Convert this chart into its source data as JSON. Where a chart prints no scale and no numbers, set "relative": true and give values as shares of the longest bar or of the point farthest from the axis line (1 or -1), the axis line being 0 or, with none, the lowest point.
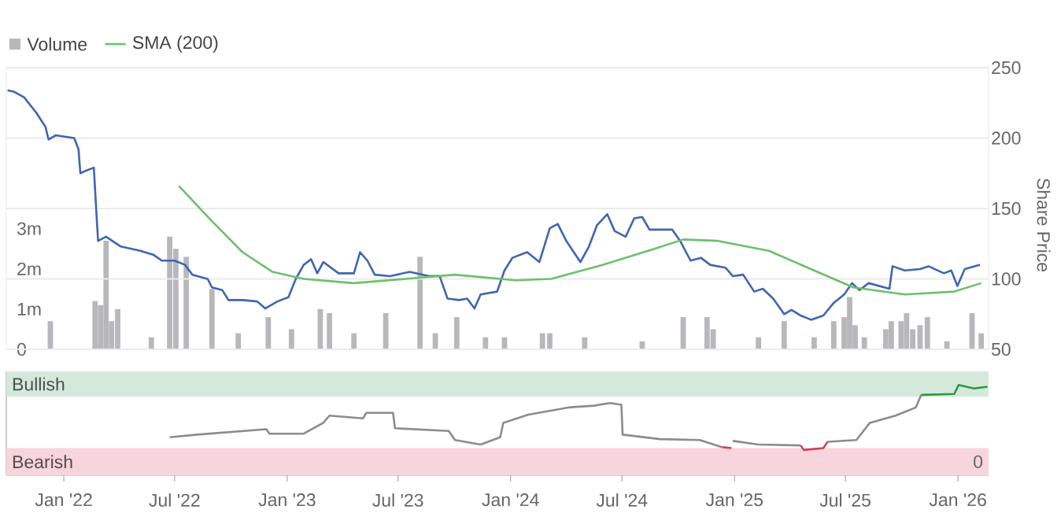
{
  "chart_data": [
    {
      "type": "line",
      "legend": "top left",
      "grid": "y",
      "tick_labels": "y",
      "y2label": "Share Price",
      "xlim": [
        "2021-09-29",
        "2026-02-20"
      ],
      "ylim": [
        0,
        7000000
      ],
      "yticks": [
        0,
        {
          "value": 1000000,
          "label": "1m"
        },
        {
          "value": 2000000,
          "label": "2m"
        },
        {
          "value": 3000000,
          "label": "3m"
        }
      ],
      "y2lim": [
        50,
        250
      ],
      "y2ticks": [
        50,
        100,
        150,
        200,
        250
      ],
      "series": [
        {
          "name": "Volume",
          "type": "bar",
          "color": "#b8b8bc",
          "x": [
            "2021-12-10",
            "2022-02-21",
            "2022-03-02",
            "2022-03-11",
            "2022-03-20",
            "2022-03-30",
            "2022-05-24",
            "2022-06-23",
            "2022-07-03",
            "2022-07-20",
            "2022-08-31",
            "2022-10-13",
            "2022-12-01",
            "2023-01-08",
            "2023-02-24",
            "2023-03-11",
            "2023-04-20",
            "2023-06-11",
            "2023-08-06",
            "2023-08-31",
            "2023-10-05",
            "2023-11-21",
            "2023-12-22",
            "2024-02-22",
            "2024-03-05",
            "2024-05-01",
            "2024-08-03",
            "2024-10-09",
            "2024-11-17",
            "2024-11-27",
            "2025-02-09",
            "2025-03-23",
            "2025-05-11",
            "2025-06-12",
            "2025-06-29",
            "2025-07-08",
            "2025-07-17",
            "2025-08-01",
            "2025-09-05",
            "2025-09-14",
            "2025-09-30",
            "2025-10-09",
            "2025-10-19",
            "2025-10-31",
            "2025-11-12",
            "2025-12-14",
            "2026-01-24",
            "2026-02-08"
          ],
          "values": [
            700000,
            1200000,
            1100000,
            2700000,
            700000,
            1000000,
            300000,
            2800000,
            2500000,
            2300000,
            1500000,
            400000,
            800000,
            500000,
            1000000,
            900000,
            400000,
            900000,
            2300000,
            400000,
            800000,
            300000,
            300000,
            400000,
            400000,
            300000,
            200000,
            800000,
            800000,
            500000,
            300000,
            700000,
            300000,
            700000,
            800000,
            1300000,
            600000,
            300000,
            500000,
            700000,
            700000,
            900000,
            500000,
            600000,
            800000,
            200000,
            900000,
            400000
          ]
        },
        {
          "axis": "y2",
          "color": "#3f66b0",
          "x": [
            "2021-10-01",
            "2021-10-11",
            "2021-10-28",
            "2021-11-17",
            "2021-12-02",
            "2021-12-07",
            "2021-12-19",
            "2022-01-18",
            "2022-01-25",
            "2022-01-28",
            "2022-02-07",
            "2022-02-19",
            "2022-02-24",
            "2022-02-26",
            "2022-03-11",
            "2022-04-04",
            "2022-05-06",
            "2022-05-28",
            "2022-06-10",
            "2022-07-01",
            "2022-07-18",
            "2022-07-30",
            "2022-08-24",
            "2022-08-31",
            "2022-09-17",
            "2022-09-27",
            "2022-10-20",
            "2022-11-13",
            "2022-11-26",
            "2022-12-16",
            "2023-01-03",
            "2023-01-15",
            "2023-01-28",
            "2023-02-09",
            "2023-02-19",
            "2023-03-01",
            "2023-03-26",
            "2023-04-20",
            "2023-04-30",
            "2023-05-12",
            "2023-05-24",
            "2023-06-18",
            "2023-07-20",
            "2023-08-21",
            "2023-09-07",
            "2023-09-20",
            "2023-10-09",
            "2023-10-22",
            "2023-11-03",
            "2023-11-13",
            "2023-12-10",
            "2023-12-22",
            "2024-01-04",
            "2024-01-28",
            "2024-02-17",
            "2024-03-05",
            "2024-03-18",
            "2024-04-01",
            "2024-04-24",
            "2024-05-08",
            "2024-05-21",
            "2024-06-07",
            "2024-06-19",
            "2024-07-07",
            "2024-07-21",
            "2024-08-03",
            "2024-08-15",
            "2024-09-21",
            "2024-10-04",
            "2024-10-21",
            "2024-11-07",
            "2024-11-22",
            "2024-12-17",
            "2024-12-29",
            "2025-01-15",
            "2025-02-02",
            "2025-02-16",
            "2025-03-05",
            "2025-03-23",
            "2025-04-04",
            "2025-04-19",
            "2025-05-06",
            "2025-05-26",
            "2025-06-12",
            "2025-06-29",
            "2025-07-12",
            "2025-07-24",
            "2025-08-08",
            "2025-09-11",
            "2025-09-16",
            "2025-10-06",
            "2025-10-31",
            "2025-11-14",
            "2025-12-09",
            "2025-12-21",
            "2025-12-31",
            "2026-01-12",
            "2026-02-06"
          ],
          "values": [
            234,
            233,
            229,
            218,
            208,
            199,
            202,
            200,
            192,
            175,
            177,
            179,
            141,
            127,
            130,
            123,
            120,
            117,
            113,
            113,
            110,
            103,
            100,
            94,
            92,
            85,
            85,
            84,
            79,
            84,
            87,
            100,
            110,
            114,
            104,
            112,
            104,
            104,
            119,
            113,
            103,
            102,
            105,
            102,
            102,
            86,
            85,
            86,
            79,
            89,
            91,
            106,
            115,
            119,
            112,
            136,
            139,
            127,
            112,
            123,
            138,
            146,
            134,
            130,
            143,
            144,
            135,
            135,
            127,
            113,
            115,
            110,
            108,
            102,
            103,
            91,
            93,
            86,
            75,
            78,
            74,
            71,
            74,
            83,
            89,
            97,
            92,
            97,
            93,
            109,
            106,
            107,
            109,
            104,
            106,
            95,
            107,
            110
          ]
        },
        {
          "name": "SMA (200)",
          "axis": "y2",
          "color": "#6cc06c",
          "x": [
            "2022-07-08",
            "2022-08-31",
            "2022-10-20",
            "2022-12-08",
            "2023-01-28",
            "2023-04-20",
            "2023-07-13",
            "2023-10-02",
            "2024-01-09",
            "2024-03-07",
            "2024-05-31",
            "2024-08-20",
            "2024-10-09",
            "2024-12-05",
            "2025-02-26",
            "2025-05-11",
            "2025-07-14",
            "2025-10-06",
            "2025-12-26",
            "2026-02-08"
          ],
          "values": [
            166,
            141,
            119,
            105,
            100,
            97,
            100,
            103,
            99,
            100,
            110,
            121,
            128,
            127,
            120,
            106,
            94,
            89,
            91,
            97
          ]
        }
      ]
    },
    {
      "type": "line",
      "relative": true,
      "tick_labels": "x",
      "xlim": [
        "2021-09-29",
        "2026-02-20"
      ],
      "xticks": [
        {
          "value": "2022-01-01",
          "label": "Jan '22"
        },
        {
          "value": "2022-07-01",
          "label": "Jul '22"
        },
        {
          "value": "2023-01-01",
          "label": "Jan '23"
        },
        {
          "value": "2023-07-01",
          "label": "Jul '23"
        },
        {
          "value": "2024-01-01",
          "label": "Jan '24"
        },
        {
          "value": "2024-07-01",
          "label": "Jul '24"
        },
        {
          "value": "2025-01-01",
          "label": "Jan '25"
        },
        {
          "value": "2025-07-01",
          "label": "Jul '25"
        },
        {
          "value": "2026-01-01",
          "label": "Jan '26"
        }
      ],
      "bands": [
        {
          "axis": "y",
          "from": 0.87,
          "to": 1.15,
          "label": "Bullish",
          "color": "#d4e9dc"
        },
        {
          "axis": "y",
          "from": 0,
          "to": 0.3,
          "label": "Bearish",
          "color": "#f6d5dc"
        }
      ],
      "annotations": [
        "0"
      ],
      "series": [
        {
          "color": "#8c8c8c",
          "x": [
            "2022-06-23",
            "2022-08-07",
            "2022-11-28",
            "2022-12-03",
            "2023-01-28",
            "2023-03-01",
            "2023-03-11",
            "2023-05-05",
            "2023-05-10",
            "2023-06-23",
            "2023-06-26",
            "2023-09-22",
            "2023-10-02",
            "2023-11-13",
            "2023-12-15",
            "2023-12-20",
            "2024-01-30",
            "2024-04-04",
            "2024-05-16",
            "2024-06-12",
            "2024-06-30",
            "2024-07-02",
            "2024-09-01",
            "2024-11-05",
            "2024-12-12",
            "2024-12-20",
            "2024-12-29",
            "2025-02-09",
            "2025-04-19",
            "2025-04-22",
            "2025-06-02",
            "2025-07-19",
            "2025-08-10",
            "2025-09-21",
            "2025-10-24",
            "2025-11-02"
          ],
          "values": [
            0.42,
            0.45,
            0.51,
            0.46,
            0.46,
            0.58,
            0.66,
            0.63,
            0.69,
            0.69,
            0.52,
            0.49,
            0.39,
            0.34,
            0.42,
            0.58,
            0.67,
            0.75,
            0.77,
            0.8,
            0.78,
            0.45,
            0.4,
            0.39,
            0.31,
            null,
            0.38,
            0.34,
            0.33,
            null,
            0.37,
            0.39,
            0.58,
            0.66,
            0.75,
            0.89
          ]
        },
        {
          "color": "#d0405a",
          "x": [
            "2024-12-12",
            "2024-12-27",
            "2025-01-10",
            "2025-04-19",
            "2025-04-24",
            "2025-05-26",
            "2025-06-02"
          ],
          "values": [
            0.31,
            0.3,
            null,
            0.33,
            0.28,
            0.3,
            0.37
          ]
        },
        {
          "color": "#2e9a3e",
          "x": [
            "2025-11-02",
            "2025-12-26",
            "2026-01-02",
            "2026-01-27",
            "2026-02-18"
          ],
          "values": [
            0.89,
            0.9,
            1.0,
            0.96,
            0.98
          ]
        }
      ]
    }
  ]
}
